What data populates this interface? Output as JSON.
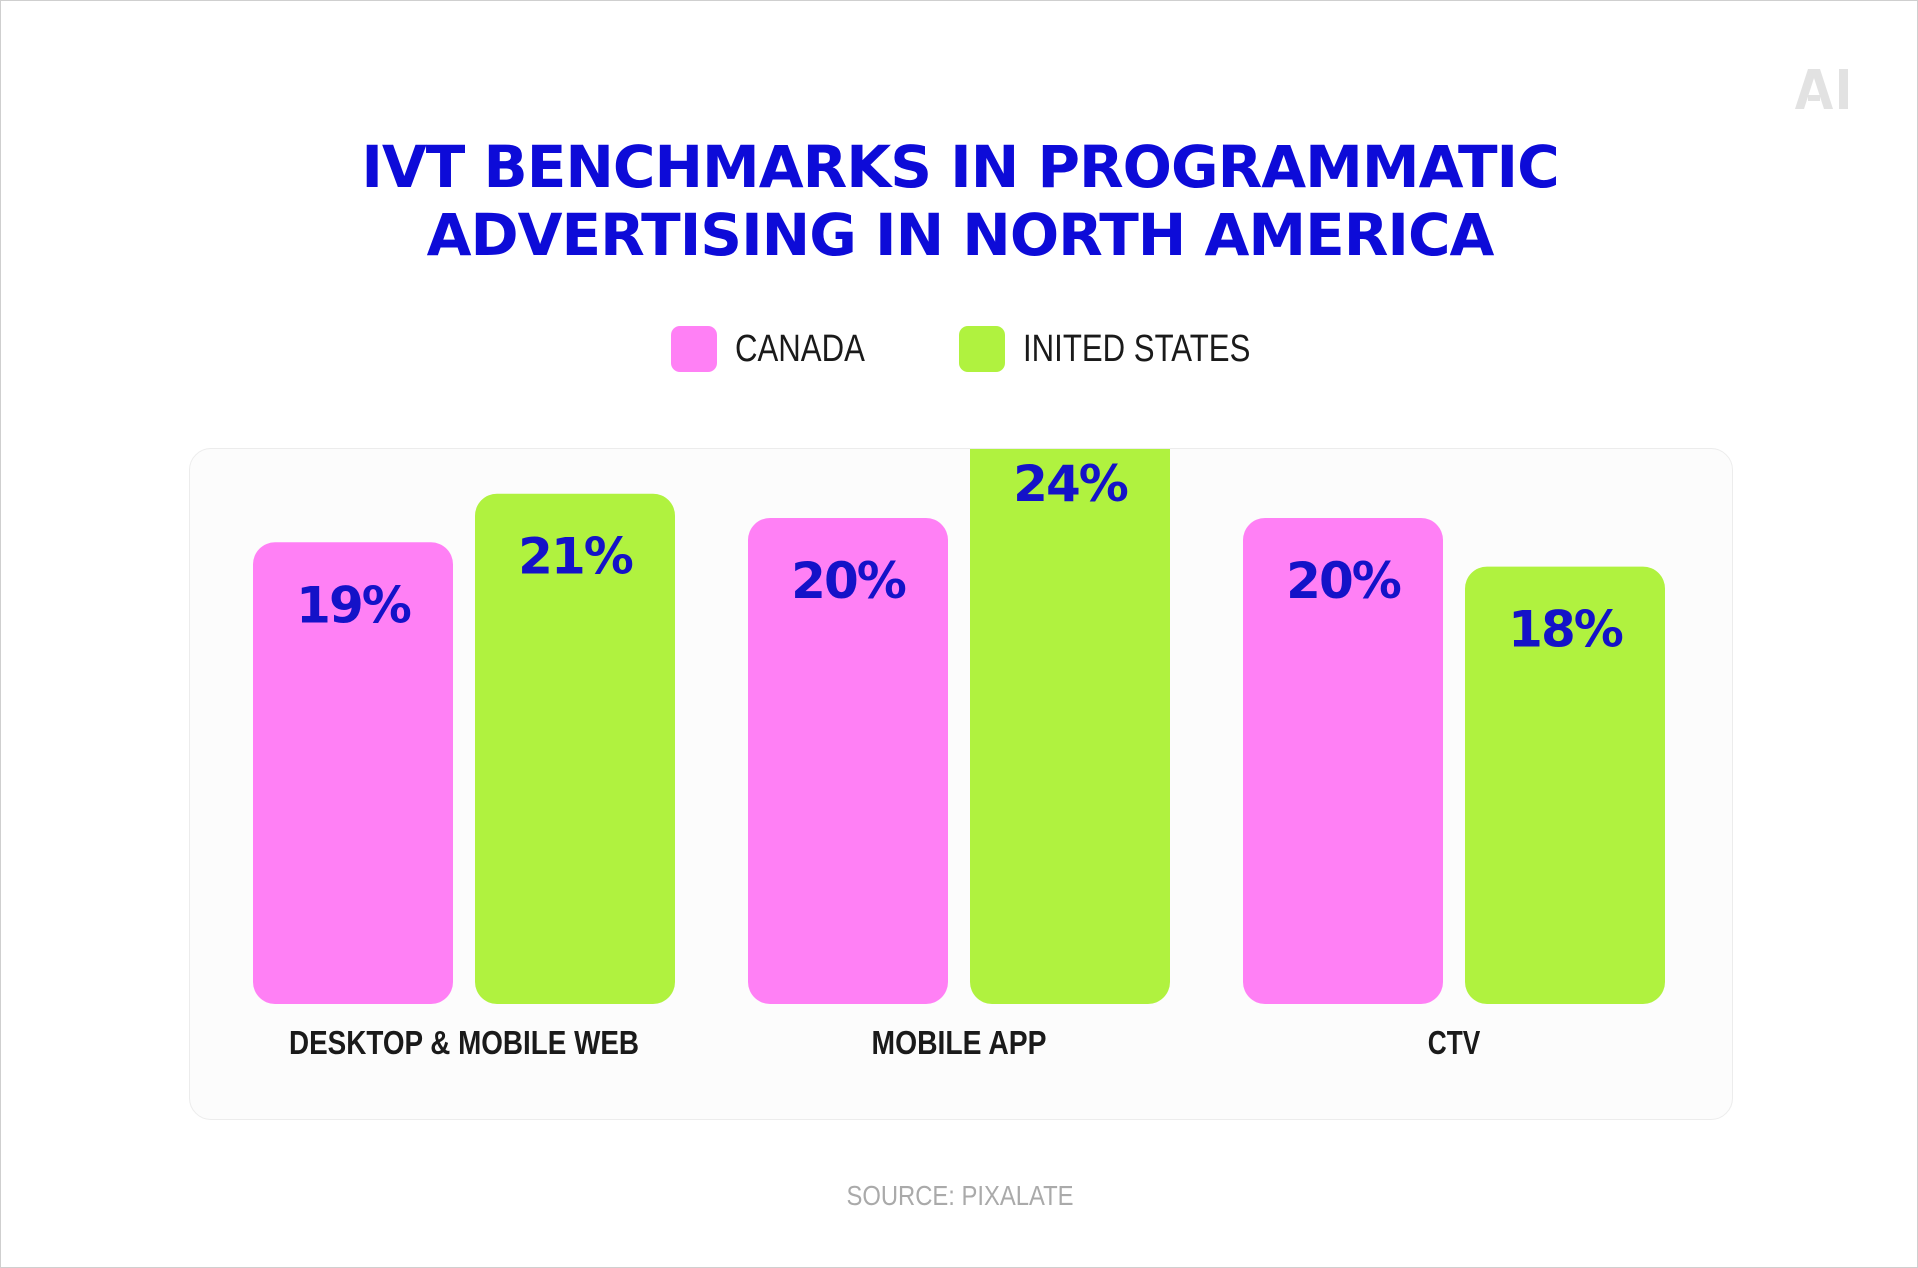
{
  "colors": {
    "title": "#0d0bd8",
    "canada": "#ff80f5",
    "united_states": "#b0f23f",
    "value_label": "#1412c8",
    "category_label": "#1a1a1a",
    "source": "#aaaaaa",
    "logo": "#e2e2e2"
  },
  "logo": {
    "text": "AI"
  },
  "title": {
    "line1": "IVT BENCHMARKS IN PROGRAMMATIC",
    "line2": "ADVERTISING IN NORTH AMERICA"
  },
  "legend": [
    {
      "label": "CANADA",
      "color": "#ff80f5"
    },
    {
      "label": "INITED STATES",
      "color": "#b0f23f"
    }
  ],
  "source": "SOURCE: PIXALATE",
  "chart_data": {
    "type": "bar",
    "categories": [
      "DESKTOP & MOBILE WEB",
      "MOBILE APP",
      "CTV"
    ],
    "series": [
      {
        "name": "CANADA",
        "values": [
          19,
          20,
          20
        ],
        "labels": [
          "19%",
          "20%",
          "20%"
        ],
        "color": "#ff80f5"
      },
      {
        "name": "INITED STATES",
        "values": [
          21,
          24,
          18
        ],
        "labels": [
          "21%",
          "24%",
          "18%"
        ],
        "color": "#b0f23f"
      }
    ],
    "title": "IVT BENCHMARKS IN PROGRAMMATIC ADVERTISING IN NORTH AMERICA",
    "unit": "%",
    "grid": false,
    "legend_position": "top"
  }
}
